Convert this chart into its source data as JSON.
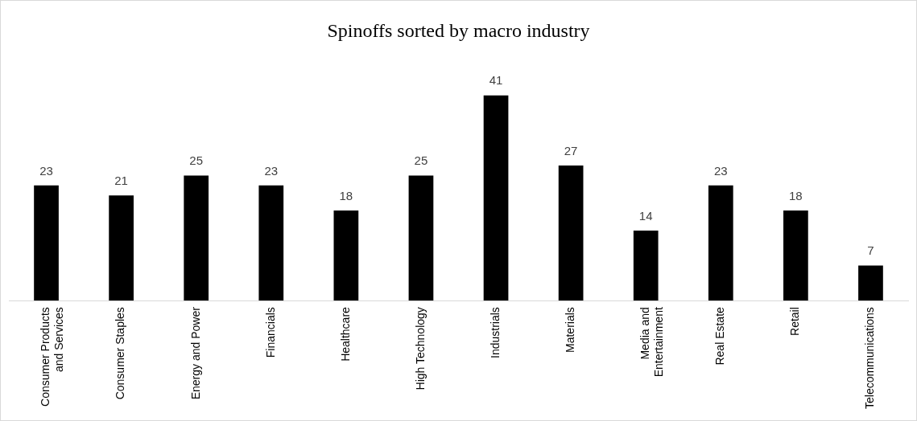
{
  "chart_data": {
    "type": "bar",
    "title": "Spinoffs sorted by macro industry",
    "categories": [
      "Consumer Products and Services",
      "Consumer Staples",
      "Energy and Power",
      "Financials",
      "Healthcare",
      "High Technology",
      "Industrials",
      "Materials",
      "Media and Entertainment",
      "Real Estate",
      "Retail",
      "Telecommunications"
    ],
    "values": [
      23,
      21,
      25,
      23,
      18,
      25,
      41,
      27,
      14,
      23,
      18,
      7
    ],
    "color": "#000000",
    "data_labels": true,
    "legend": false,
    "grid": false
  }
}
